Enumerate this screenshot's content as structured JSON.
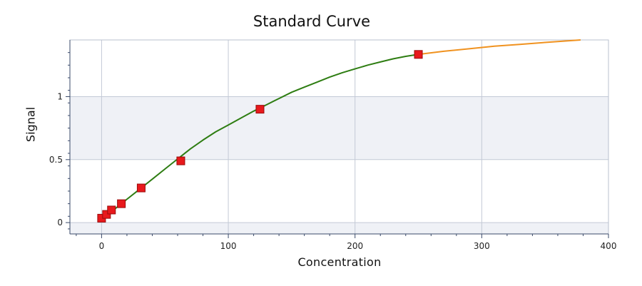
{
  "chart_data": {
    "type": "scatter",
    "title": "Standard Curve",
    "xlabel": "Concentration",
    "ylabel": "Signal",
    "xlim": [
      -25,
      400
    ],
    "ylim": [
      -0.09,
      1.45
    ],
    "x_ticks": [
      0,
      100,
      200,
      300,
      400
    ],
    "x_tick_labels": [
      "0",
      "100",
      "200",
      "300",
      "400"
    ],
    "y_ticks": [
      0,
      0.5,
      1
    ],
    "y_tick_labels": [
      "0",
      "0.5",
      "1"
    ],
    "grid": true,
    "legend": "none",
    "series": [
      {
        "kind": "points",
        "color": "#e8191c",
        "x": [
          0,
          3.9,
          7.8,
          15.6,
          31.25,
          62.5,
          125,
          250
        ],
        "y": [
          0.035,
          0.065,
          0.1,
          0.15,
          0.275,
          0.49,
          0.9,
          1.335
        ]
      },
      {
        "kind": "fit",
        "color": "#2e7d12",
        "x": [
          0,
          10,
          20,
          30,
          40,
          50,
          60,
          70,
          80,
          90,
          100,
          110,
          120,
          130,
          140,
          150,
          160,
          170,
          180,
          190,
          200,
          210,
          220,
          230,
          240,
          250
        ],
        "y": [
          0.035,
          0.105,
          0.185,
          0.265,
          0.345,
          0.425,
          0.505,
          0.585,
          0.655,
          0.72,
          0.775,
          0.83,
          0.885,
          0.935,
          0.985,
          1.035,
          1.075,
          1.115,
          1.155,
          1.19,
          1.22,
          1.25,
          1.275,
          1.3,
          1.32,
          1.335
        ]
      },
      {
        "kind": "extrapolation",
        "color": "#f0921f",
        "x": [
          250,
          270,
          290,
          310,
          330,
          350,
          378
        ],
        "y": [
          1.335,
          1.36,
          1.38,
          1.4,
          1.415,
          1.43,
          1.45
        ]
      }
    ]
  }
}
